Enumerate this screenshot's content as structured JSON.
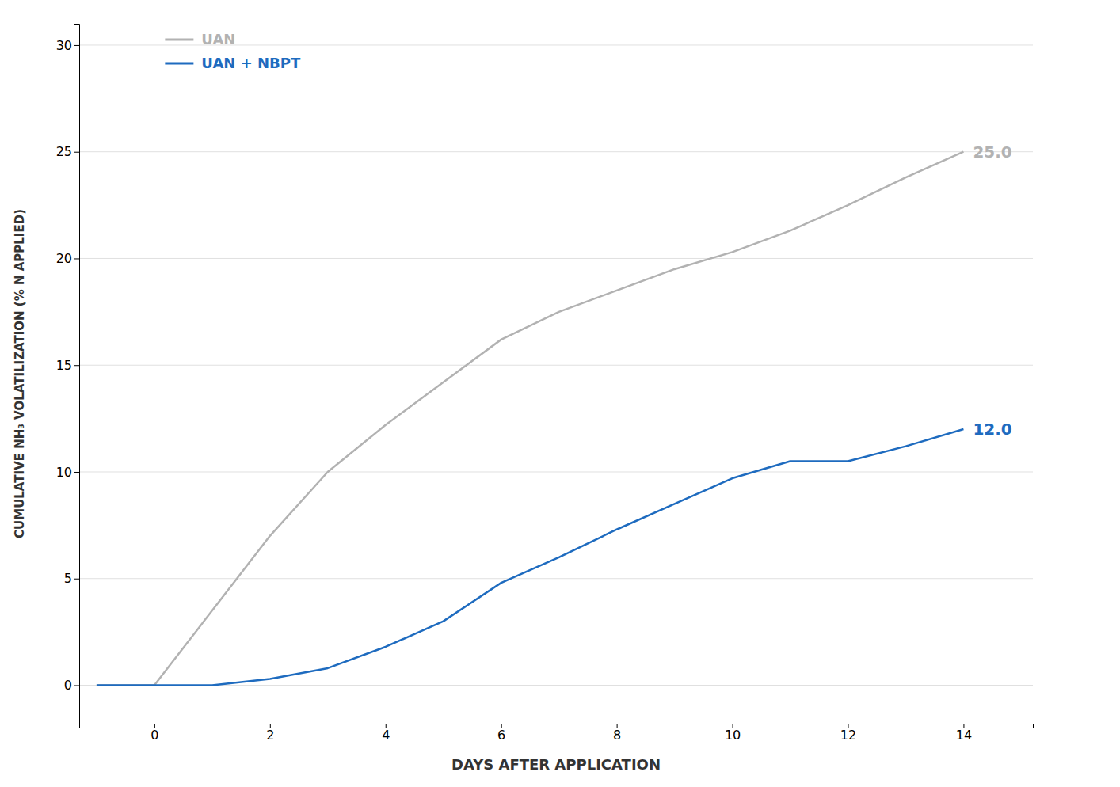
{
  "chart_data": {
    "type": "line",
    "xlabel": "DAYS AFTER APPLICATION",
    "ylabel": "CUMULATIVE NH₃ VOLATILIZATION  (% N APPLIED)",
    "xlim": [
      -1.3,
      15.2
    ],
    "ylim": [
      -1.8,
      31
    ],
    "xticks": [
      0,
      2,
      4,
      6,
      8,
      10,
      12,
      14
    ],
    "yticks": [
      0,
      5,
      10,
      15,
      20,
      25,
      30
    ],
    "grid": "y",
    "legend": "upper left",
    "series": [
      {
        "name": "UAN",
        "color": "#b2b2b2",
        "x": [
          -1,
          0,
          2,
          3,
          4,
          5,
          6,
          7,
          8,
          9,
          10,
          11,
          12,
          13,
          14
        ],
        "values": [
          0,
          0,
          7,
          10,
          12.2,
          14.2,
          16.2,
          17.5,
          18.5,
          19.5,
          20.3,
          21.3,
          22.5,
          23.8,
          25.0
        ]
      },
      {
        "name": "UAN + NBPT",
        "color": "#1e6bbf",
        "x": [
          -1,
          0,
          1,
          2,
          3,
          4,
          5,
          6,
          7,
          8,
          9,
          10,
          11,
          12,
          13,
          14
        ],
        "values": [
          0,
          0,
          0,
          0.3,
          0.8,
          1.8,
          3.0,
          4.8,
          6.0,
          7.3,
          8.5,
          9.7,
          10.5,
          10.5,
          11.2,
          12.0
        ]
      }
    ],
    "annotations": [
      {
        "text": "25.0",
        "x": 14,
        "y": 25.0,
        "series": 0
      },
      {
        "text": "12.0",
        "x": 14,
        "y": 12.0,
        "series": 1
      }
    ]
  }
}
